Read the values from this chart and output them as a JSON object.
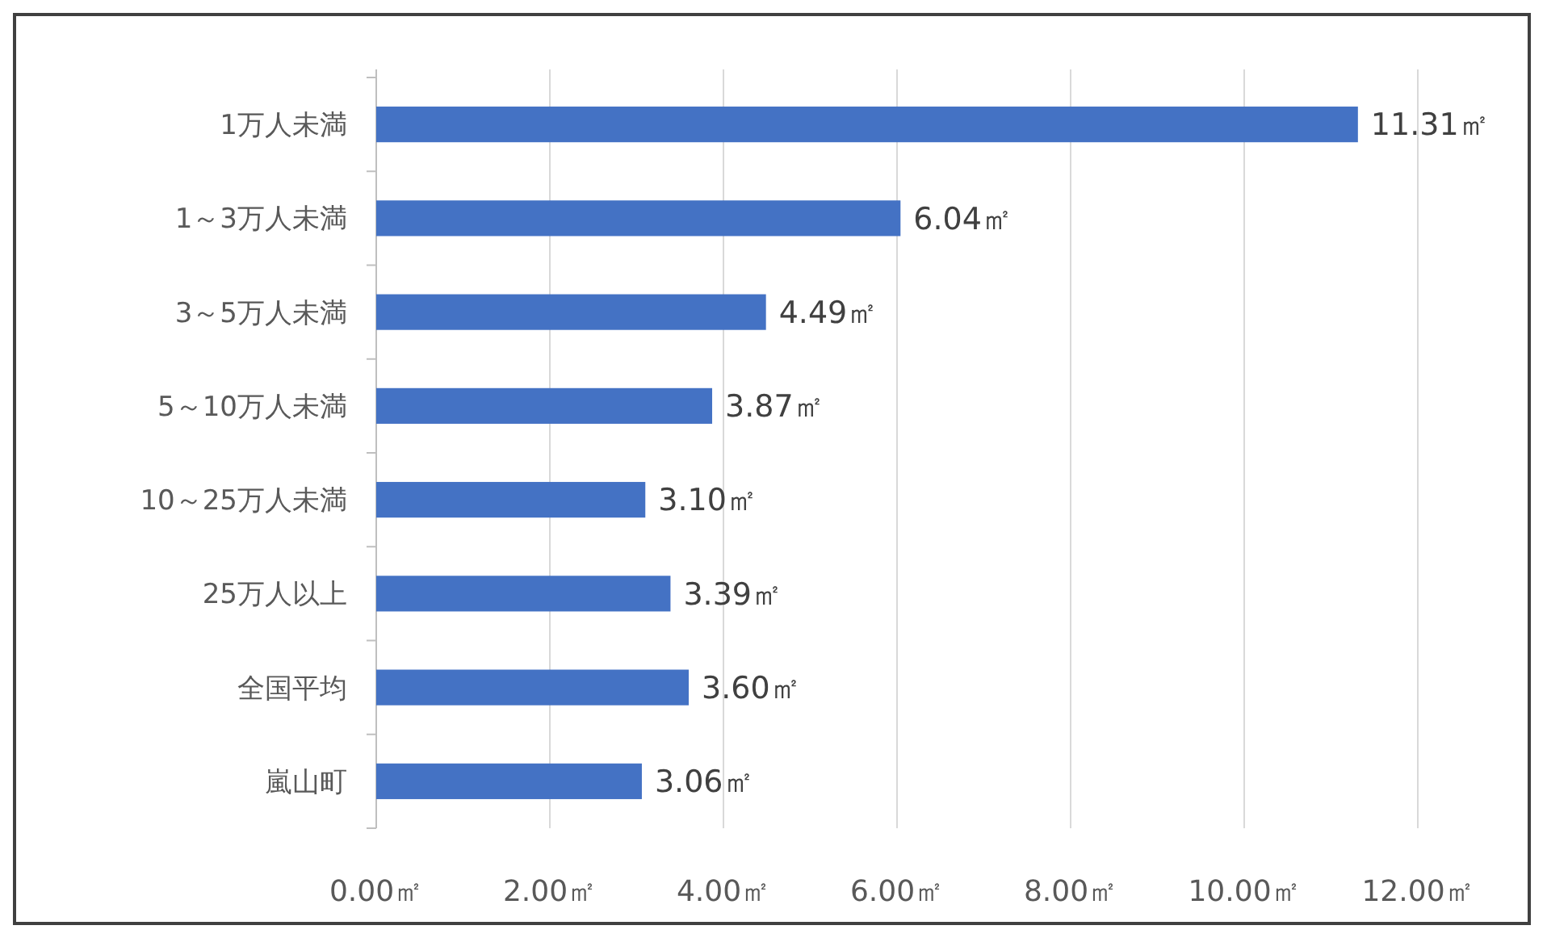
{
  "chart_data": {
    "type": "bar",
    "orientation": "horizontal",
    "categories": [
      "1万人未満",
      "1～3万人未満",
      "3～5万人未満",
      "5～10万人未満",
      "10～25万人未満",
      "25万人以上",
      "全国平均",
      "嵐山町"
    ],
    "values": [
      11.31,
      6.04,
      4.49,
      3.87,
      3.1,
      3.39,
      3.6,
      3.06
    ],
    "value_labels": [
      "11.31㎡",
      "6.04㎡",
      "4.49㎡",
      "3.87㎡",
      "3.10㎡",
      "3.39㎡",
      "3.60㎡",
      "3.06㎡"
    ],
    "color": "#4472c4",
    "xlim": [
      0,
      12
    ],
    "xticks": [
      {
        "value": 0,
        "label": "0.00㎡"
      },
      {
        "value": 2,
        "label": "2.00㎡"
      },
      {
        "value": 4,
        "label": "4.00㎡"
      },
      {
        "value": 6,
        "label": "6.00㎡"
      },
      {
        "value": 8,
        "label": "8.00㎡"
      },
      {
        "value": 10,
        "label": "10.00㎡"
      },
      {
        "value": 12,
        "label": "12.00㎡"
      }
    ],
    "grid": "x"
  }
}
